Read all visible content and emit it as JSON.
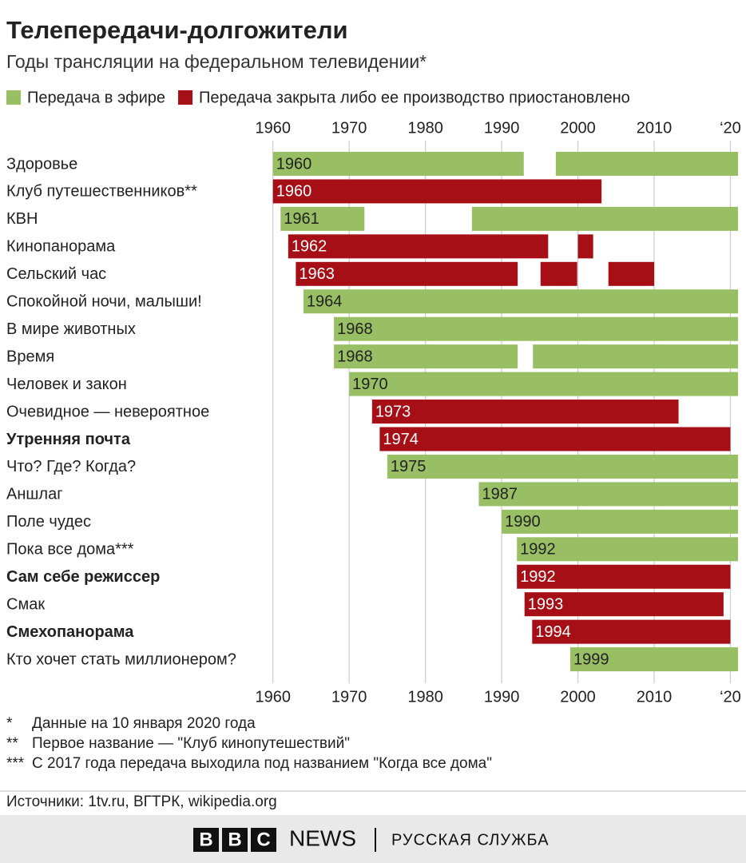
{
  "chart_data": {
    "type": "timeline",
    "title": "Телепередачи-долгожители",
    "subtitle": "Годы трансляции на федеральном телевидении*",
    "legend": [
      {
        "name": "Передача в эфире",
        "color": "#98bf64"
      },
      {
        "name": "Передача закрыта либо ее производство приостановлено",
        "color": "#a50f15"
      }
    ],
    "xlim": [
      1955,
      2021
    ],
    "xticks": [
      1960,
      1970,
      1980,
      1990,
      2000,
      2010,
      {
        "value": 2020,
        "label": "‘20"
      }
    ],
    "grid": true,
    "rows": [
      {
        "name": "Здоровье",
        "status": 0,
        "bold": false,
        "segments": [
          [
            1960,
            1992.9
          ],
          [
            1997.1,
            2021
          ]
        ]
      },
      {
        "name": "Клуб путешественников**",
        "status": 1,
        "bold": false,
        "segments": [
          [
            1960,
            2003.1
          ]
        ]
      },
      {
        "name": "КВН",
        "status": 0,
        "bold": false,
        "segments": [
          [
            1961,
            1972
          ],
          [
            1986.1,
            2021
          ]
        ]
      },
      {
        "name": "Кинопанорама",
        "status": 1,
        "bold": false,
        "segments": [
          [
            1962,
            1996.1
          ],
          [
            2000,
            2002
          ]
        ]
      },
      {
        "name": "Сельский час",
        "status": 1,
        "bold": false,
        "segments": [
          [
            1963,
            1992.1
          ],
          [
            1995.1,
            1999.9
          ],
          [
            2004,
            2010
          ]
        ]
      },
      {
        "name": "Спокойной ночи, малыши!",
        "status": 0,
        "bold": false,
        "segments": [
          [
            1964,
            2021
          ]
        ]
      },
      {
        "name": "В мире животных",
        "status": 0,
        "bold": false,
        "segments": [
          [
            1968,
            2021
          ]
        ]
      },
      {
        "name": "Время",
        "status": 0,
        "bold": false,
        "segments": [
          [
            1968,
            1992.1
          ],
          [
            1994.1,
            2021
          ]
        ]
      },
      {
        "name": "Человек и закон",
        "status": 0,
        "bold": false,
        "segments": [
          [
            1970,
            2021
          ]
        ]
      },
      {
        "name": "Очевидное — невероятное",
        "status": 1,
        "bold": false,
        "segments": [
          [
            1973,
            2013.2
          ]
        ]
      },
      {
        "name": "Утренняя почта",
        "status": 1,
        "bold": true,
        "segments": [
          [
            1974,
            2020
          ]
        ]
      },
      {
        "name": "Что? Где? Когда?",
        "status": 0,
        "bold": false,
        "segments": [
          [
            1975,
            2021
          ]
        ]
      },
      {
        "name": "Аншлаг",
        "status": 0,
        "bold": false,
        "segments": [
          [
            1987,
            2021
          ]
        ]
      },
      {
        "name": "Поле чудес",
        "status": 0,
        "bold": false,
        "segments": [
          [
            1990,
            2021
          ]
        ]
      },
      {
        "name": "Пока все дома***",
        "status": 0,
        "bold": false,
        "segments": [
          [
            1992,
            2021
          ]
        ]
      },
      {
        "name": "Сам себе режиссер",
        "status": 1,
        "bold": true,
        "segments": [
          [
            1992,
            2020
          ]
        ]
      },
      {
        "name": "Смак",
        "status": 1,
        "bold": false,
        "segments": [
          [
            1993,
            2019.1
          ]
        ]
      },
      {
        "name": "Смехопанорама",
        "status": 1,
        "bold": true,
        "segments": [
          [
            1994,
            2020
          ]
        ]
      },
      {
        "name": "Кто хочет стать миллионером?",
        "status": 0,
        "bold": false,
        "segments": [
          [
            1999,
            2021
          ]
        ]
      }
    ],
    "notes": [
      {
        "mark": "*",
        "text": "Данные на 10 января 2020 года"
      },
      {
        "mark": "**",
        "text": "Первое название — \"Клуб кинопутешествий\""
      },
      {
        "mark": "***",
        "text": "С 2017 года передача выходила под названием \"Когда все дома\""
      }
    ],
    "source": "Источники: 1tv.ru, ВГТРК, wikipedia.org"
  },
  "footer": {
    "brand": [
      "B",
      "B",
      "C"
    ],
    "news": "NEWS",
    "service": "РУССКАЯ СЛУЖБА"
  }
}
